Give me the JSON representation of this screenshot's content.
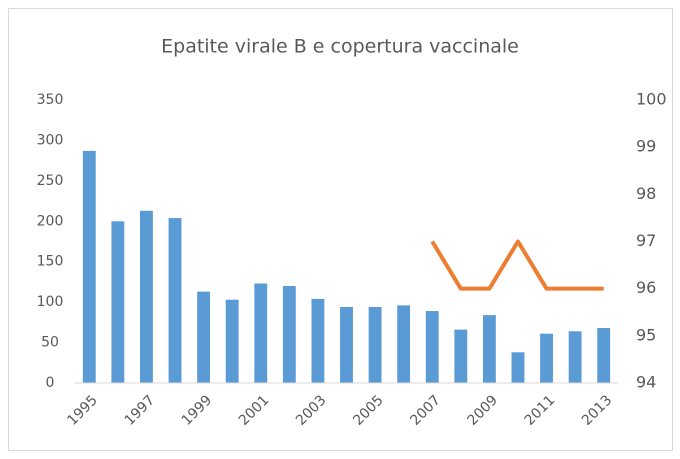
{
  "chart_data": {
    "type": "bar_line",
    "title": "Epatite virale B e copertura vaccinale",
    "categories": [
      "1995",
      null,
      "1997",
      null,
      "1999",
      null,
      "2001",
      null,
      "2003",
      null,
      "2005",
      null,
      "2007",
      null,
      "2009",
      null,
      "2011",
      null,
      "2013"
    ],
    "series": [
      {
        "type": "bar",
        "color": "#5b9bd5",
        "values": [
          287,
          200,
          213,
          204,
          113,
          103,
          123,
          120,
          104,
          94,
          94,
          96,
          89,
          66,
          84,
          38,
          61,
          64,
          68
        ]
      },
      {
        "type": "line",
        "color": "#ed7d31",
        "axis": "y2",
        "values": [
          null,
          null,
          null,
          null,
          null,
          null,
          null,
          null,
          null,
          null,
          null,
          null,
          97,
          96,
          96,
          97,
          96,
          96,
          96
        ]
      }
    ],
    "ylim": [
      0,
      350
    ],
    "yticks": [
      0,
      50,
      100,
      150,
      200,
      250,
      300,
      350
    ],
    "y2lim": [
      94,
      100
    ],
    "y2ticks": [
      94,
      95,
      96,
      97,
      98,
      99,
      100
    ],
    "grid": false
  }
}
